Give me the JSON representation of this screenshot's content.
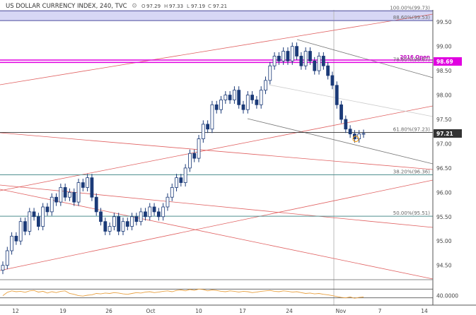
{
  "header": {
    "title": "US DOLLAR CURRENCY INDEX, 240, TVC",
    "ohlc_open": "97.29",
    "ohlc_high": "97.33",
    "ohlc_low": "97.19",
    "ohlc_close": "97.21"
  },
  "colors": {
    "candle": "#1b3a78",
    "fib_line": "#4f8f8f",
    "magenta": "#e000e0",
    "channel_red": "#e06060",
    "channel_gray": "#777777",
    "band": "#c9c9f2",
    "rsi_line": "#e8a040"
  },
  "chart_data": {
    "type": "line",
    "title": "US DOLLAR CURRENCY INDEX, 240, TVC",
    "ylim": [
      94.35,
      99.75
    ],
    "yticks": [
      "99.50",
      "99.00",
      "98.50",
      "98.00",
      "97.50",
      "97.00",
      "96.50",
      "96.00",
      "95.50",
      "95.00",
      "94.50"
    ],
    "ytick_values": [
      99.5,
      99.0,
      98.5,
      98.0,
      97.5,
      97.0,
      96.5,
      96.0,
      95.5,
      95.0,
      94.5
    ],
    "xticks": [
      "12",
      "19",
      "26",
      "Oct",
      "10",
      "17",
      "24",
      "Nov",
      "7",
      "14"
    ],
    "series": [
      {
        "values": [
          94.5,
          94.8,
          95.1,
          95.0,
          95.4,
          95.2,
          95.6,
          95.5,
          95.3,
          95.7,
          95.6,
          95.9,
          95.8,
          96.1,
          95.9,
          96.0,
          95.8,
          96.2,
          96.1,
          96.3,
          95.9,
          95.6,
          95.4,
          95.2,
          95.3,
          95.5,
          95.2,
          95.4,
          95.3,
          95.5,
          95.4,
          95.6,
          95.5,
          95.7,
          95.6,
          95.5,
          95.7,
          95.9,
          96.1,
          96.3,
          96.2,
          96.5,
          96.8,
          96.7,
          97.1,
          97.4,
          97.3,
          97.8,
          97.7,
          97.9,
          98.0,
          97.9,
          98.1,
          97.8,
          97.7,
          98.0,
          97.9,
          97.8,
          98.1,
          98.3,
          98.6,
          98.8,
          98.7,
          98.9,
          98.7,
          99.0,
          98.8,
          98.6,
          98.9,
          98.7,
          98.5,
          98.8,
          98.6,
          98.4,
          98.2,
          97.8,
          97.5,
          97.3,
          97.2,
          97.1,
          97.2,
          97.21
        ]
      }
    ],
    "price_labels": [
      {
        "text": "98.69",
        "value": 98.69,
        "kind": "magenta"
      },
      {
        "text": "97.21",
        "value": 97.21,
        "kind": "dark"
      }
    ],
    "levels": [
      {
        "label": "100.00%(99.73)",
        "value": 99.73,
        "kind": "band-top"
      },
      {
        "label": "88.60%(99.53)",
        "value": 99.53,
        "kind": "band-bottom"
      },
      {
        "label": "2016 Open",
        "value": 98.72,
        "kind": "magenta"
      },
      {
        "label": "78.60%(98.67)",
        "value": 98.67,
        "kind": "magenta2"
      },
      {
        "label": "61.80%(97.23)",
        "value": 97.23,
        "kind": "dark"
      },
      {
        "label": "38.20%(96.36)",
        "value": 96.36,
        "kind": "teal"
      },
      {
        "label": "50.00%(95.51)",
        "value": 95.51,
        "kind": "teal"
      }
    ],
    "rsi": {
      "ylim": [
        0,
        100
      ],
      "tick_label": "40.0000",
      "tick_value": 40,
      "upper_band": 70,
      "lower_band": 30,
      "values": [
        40,
        55,
        62,
        58,
        60,
        55,
        62,
        64,
        56,
        60,
        52,
        58,
        54,
        60,
        62,
        50,
        46,
        40,
        38,
        42,
        44,
        50,
        48,
        52,
        50,
        54,
        52,
        48,
        46,
        50,
        54,
        52,
        56,
        58,
        54,
        56,
        60,
        62,
        58,
        64,
        66,
        62,
        68,
        64,
        70,
        68,
        62,
        66,
        64,
        60,
        58,
        62,
        60,
        56,
        60,
        58,
        54,
        56,
        60,
        62,
        64,
        60,
        58,
        62,
        60,
        56,
        58,
        54,
        50,
        52,
        48,
        50,
        46,
        44,
        40,
        36,
        32,
        30,
        34,
        28,
        32,
        34
      ]
    }
  }
}
